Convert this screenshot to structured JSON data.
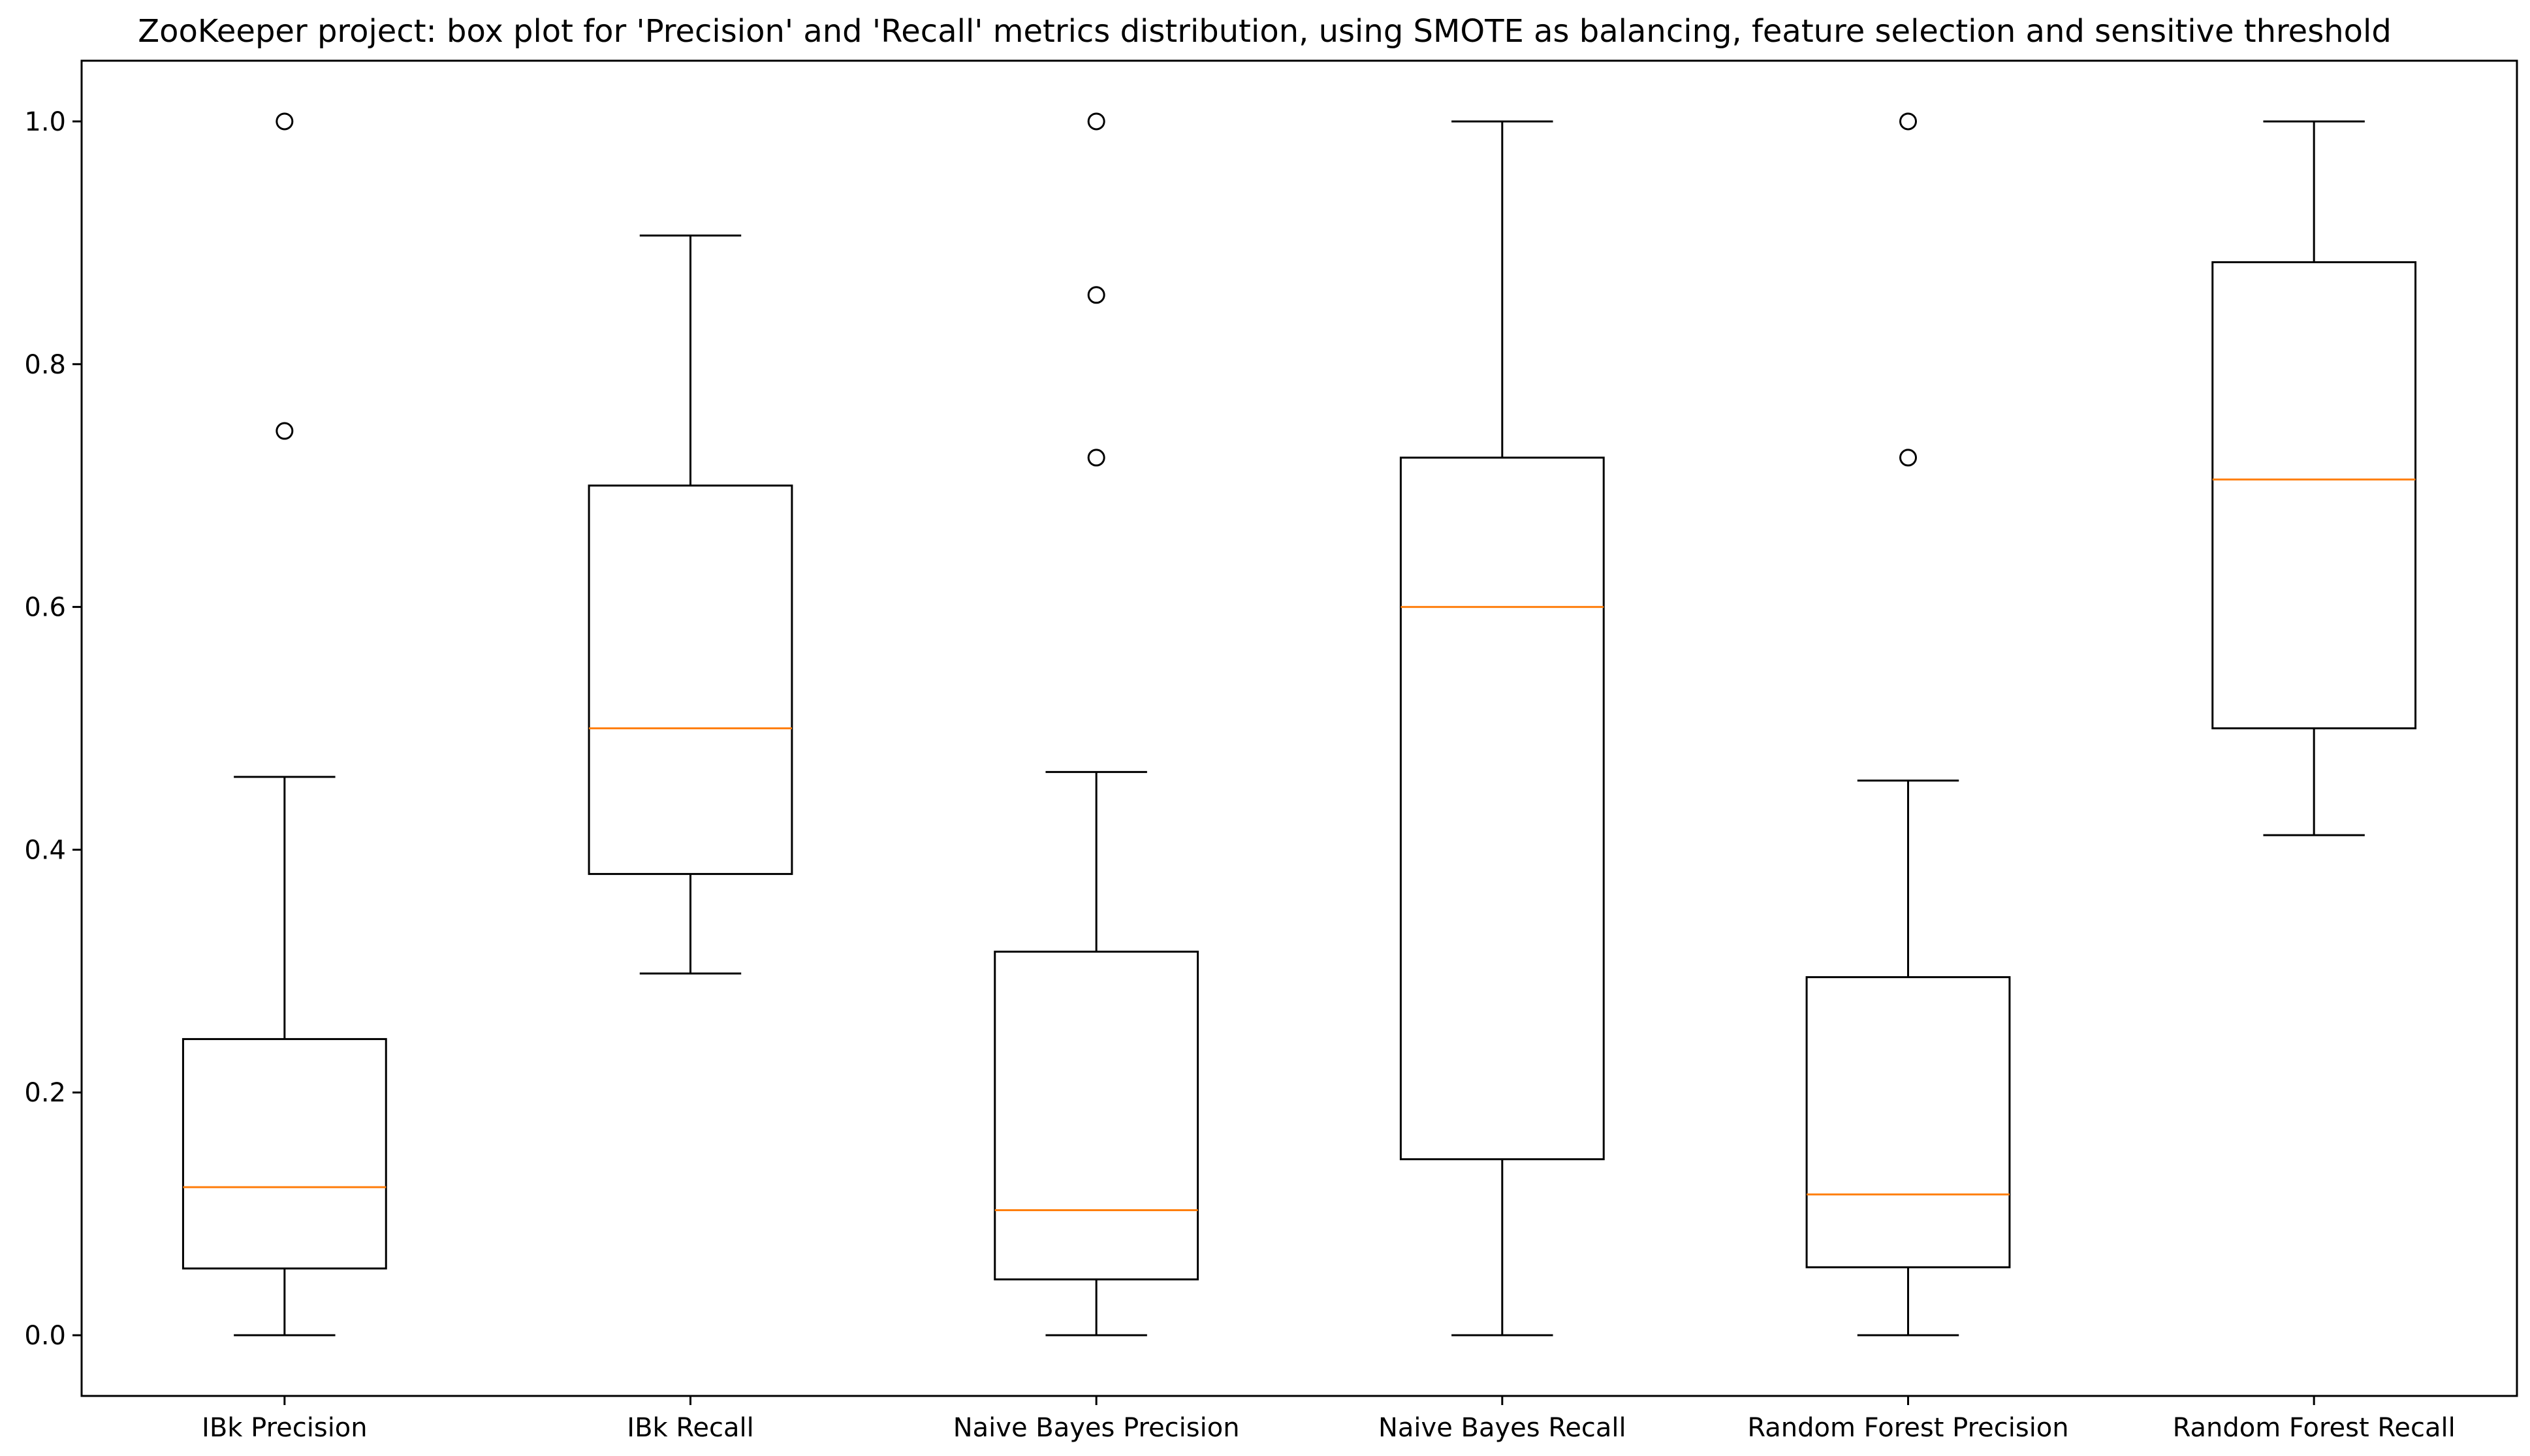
{
  "chart_data": {
    "type": "box",
    "title": "ZooKeeper project: box plot for 'Precision' and 'Recall' metrics distribution, using SMOTE as balancing, feature selection and sensitive threshold",
    "xlabel": "",
    "ylabel": "",
    "ylim": [
      -0.05,
      1.05
    ],
    "yticks": [
      "0.0",
      "0.2",
      "0.4",
      "0.6",
      "0.8",
      "1.0"
    ],
    "grid": false,
    "categories": [
      "IBk Precision",
      "IBk Recall",
      "Naive Bayes Precision",
      "Naive Bayes Recall",
      "Random Forest Precision",
      "Random Forest Recall"
    ],
    "boxes": [
      {
        "label": "IBk Precision",
        "whisker_low": 0.0,
        "q1": 0.055,
        "median": 0.122,
        "q3": 0.244,
        "whisker_high": 0.46,
        "outliers": [
          0.745,
          1.0
        ]
      },
      {
        "label": "IBk Recall",
        "whisker_low": 0.298,
        "q1": 0.38,
        "median": 0.5,
        "q3": 0.7,
        "whisker_high": 0.906,
        "outliers": []
      },
      {
        "label": "Naive Bayes Precision",
        "whisker_low": 0.0,
        "q1": 0.046,
        "median": 0.103,
        "q3": 0.316,
        "whisker_high": 0.464,
        "outliers": [
          0.723,
          0.857,
          1.0
        ]
      },
      {
        "label": "Naive Bayes Recall",
        "whisker_low": 0.0,
        "q1": 0.145,
        "median": 0.6,
        "q3": 0.723,
        "whisker_high": 1.0,
        "outliers": []
      },
      {
        "label": "Random Forest Precision",
        "whisker_low": 0.0,
        "q1": 0.056,
        "median": 0.116,
        "q3": 0.295,
        "whisker_high": 0.457,
        "outliers": [
          0.723,
          1.0
        ]
      },
      {
        "label": "Random Forest Recall",
        "whisker_low": 0.412,
        "q1": 0.5,
        "median": 0.705,
        "q3": 0.884,
        "whisker_high": 1.0,
        "outliers": []
      }
    ],
    "colors": {
      "box": "#000000",
      "median": "#ff7f0e",
      "outlier_edge": "#000000"
    }
  }
}
